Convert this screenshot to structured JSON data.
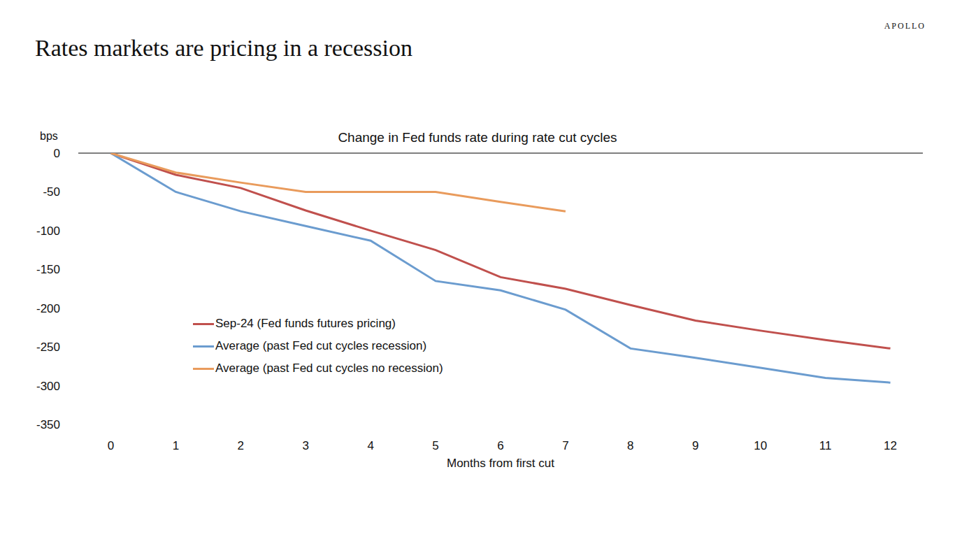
{
  "chart_data": {
    "type": "line",
    "title": "Rates markets are pricing in a recession",
    "subtitle": "Change in Fed funds rate during rate cut cycles",
    "brand": "APOLLO",
    "y_label": "bps",
    "x_label": "Months from first cut",
    "x": [
      0,
      1,
      2,
      3,
      4,
      5,
      6,
      7,
      8,
      9,
      10,
      11,
      12
    ],
    "xlim": [
      -0.5,
      12.5
    ],
    "xticks": [
      0,
      1,
      2,
      3,
      4,
      5,
      6,
      7,
      8,
      9,
      10,
      11,
      12
    ],
    "ylim": [
      -350,
      0
    ],
    "yticks": [
      -350,
      -300,
      -250,
      -200,
      -150,
      -100,
      -50,
      0
    ],
    "grid": false,
    "series": [
      {
        "name": "Sep-24 (Fed funds futures pricing)",
        "color": "#c0504d",
        "values": [
          0,
          -28,
          -45,
          -74,
          -100,
          -125,
          -160,
          -175,
          -196,
          -216,
          -229,
          -241,
          -252
        ]
      },
      {
        "name": "Average (past Fed cut cycles recession)",
        "color": "#6b9ccf",
        "values": [
          0,
          -50,
          -75,
          -94,
          -113,
          -165,
          -177,
          -202,
          -252,
          -264,
          -277,
          -290,
          -296
        ]
      },
      {
        "name": "Average (past Fed cut cycles no recession)",
        "color": "#e99b5c",
        "values": [
          0,
          -25,
          -38,
          -50,
          -50,
          -50,
          -63,
          -75,
          null,
          null,
          null,
          null,
          null
        ]
      }
    ]
  }
}
